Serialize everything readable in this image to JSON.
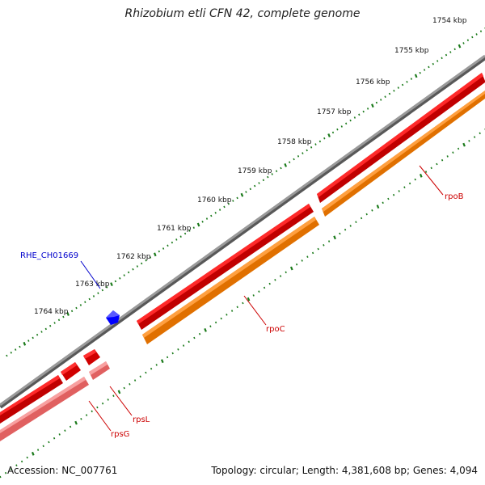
{
  "header": {
    "title": "Rhizobium etli CFN 42, complete genome"
  },
  "footer": {
    "accession": "Accession: NC_007761",
    "summary": "Topology: circular; Length: 4,381,608 bp; Genes: 4,094"
  },
  "ruler": {
    "unit": "kbp",
    "ticks": [
      "1754 kbp",
      "1755 kbp",
      "1756 kbp",
      "1757 kbp",
      "1758 kbp",
      "1759 kbp",
      "1760 kbp",
      "1761 kbp",
      "1762 kbp",
      "1763 kbp",
      "1764 kbp"
    ]
  },
  "genes": [
    {
      "name": "rpoB",
      "color": "#ff0000",
      "cds_color": "#ff8c00",
      "label_color": "#cc0000"
    },
    {
      "name": "rpoC",
      "color": "#ff0000",
      "cds_color": "#ff8c00",
      "label_color": "#cc0000"
    },
    {
      "name": "rpsL",
      "color": "#ff0000",
      "cds_color": "#f08080",
      "label_color": "#cc0000"
    },
    {
      "name": "rpsG",
      "color": "#ff0000",
      "cds_color": "#f08080",
      "label_color": "#cc0000"
    },
    {
      "name": "RHE_CH01669",
      "color": "#0000ff",
      "label_color": "#0000cc"
    }
  ],
  "colors": {
    "backbone": "#808080",
    "ticks": "#1a7a1a"
  }
}
